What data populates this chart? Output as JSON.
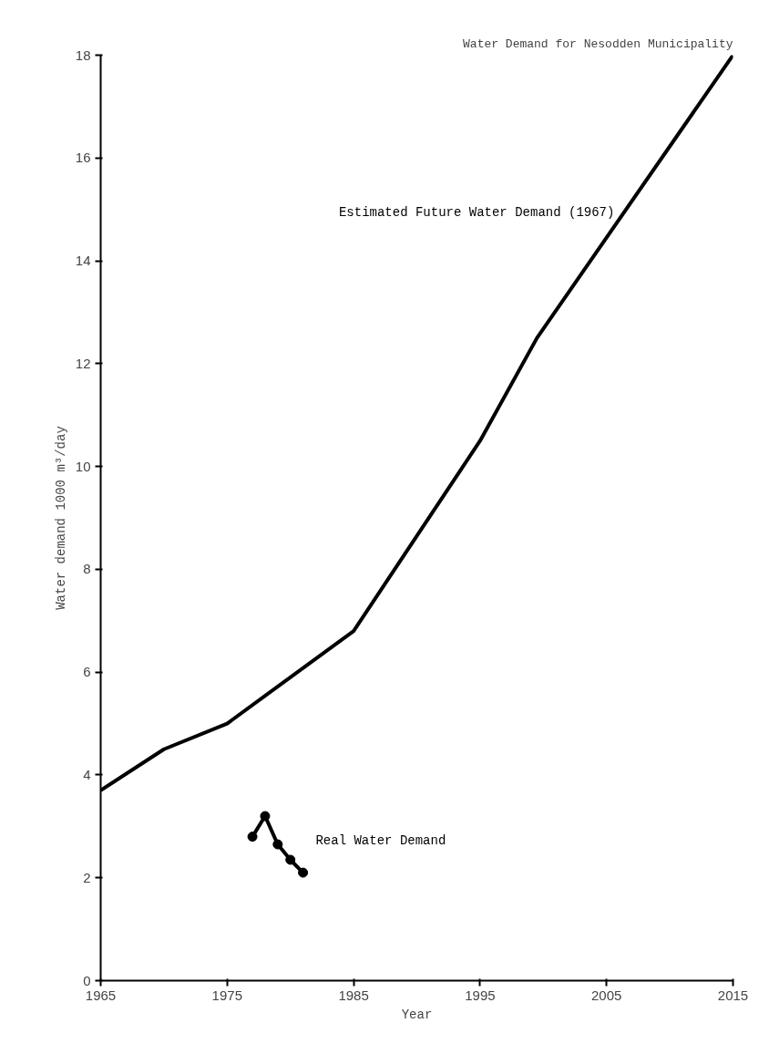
{
  "chart_data": {
    "type": "line",
    "title": "Water Demand for Nesodden Municipality",
    "xlabel": "Year",
    "ylabel": "Water demand 1000 m³/day",
    "xlim": [
      1965,
      2015
    ],
    "xticks": [
      1965,
      1975,
      1985,
      1995,
      2005,
      2015
    ],
    "ylim": [
      0,
      18
    ],
    "yticks": [
      0,
      2,
      4,
      6,
      8,
      10,
      12,
      14,
      16,
      18
    ],
    "grid": false,
    "series": [
      {
        "name": "Estimated Future Water Demand (1967)",
        "color": "#000000",
        "marker": "none",
        "x": [
          1965,
          1970,
          1975,
          1985,
          1995,
          1999.5,
          2015
        ],
        "values": [
          3.7,
          4.5,
          5.0,
          6.8,
          10.5,
          12.5,
          18.0
        ]
      },
      {
        "name": "Real Water Demand",
        "color": "#000000",
        "marker": "circle",
        "x": [
          1977,
          1978,
          1979,
          1980,
          1981
        ],
        "values": [
          2.8,
          3.2,
          2.65,
          2.35,
          2.1
        ]
      }
    ]
  }
}
